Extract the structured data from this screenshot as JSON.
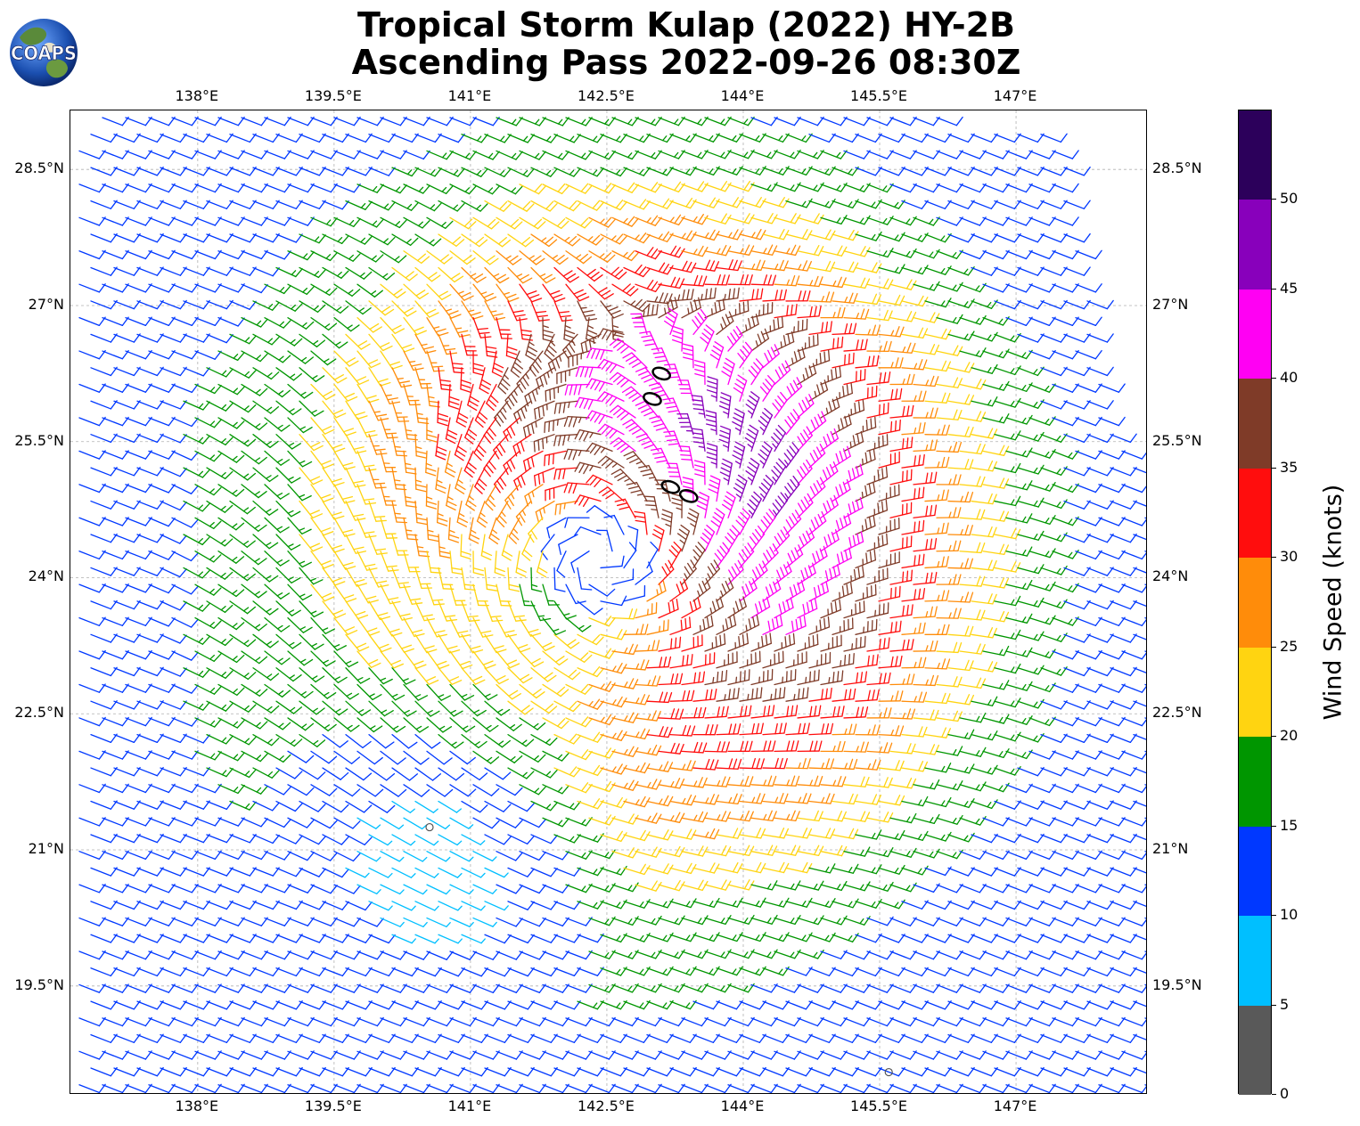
{
  "title_line1": "Tropical Storm Kulap (2022) HY-2B",
  "title_line2": "Ascending Pass 2022-09-26 08:30Z",
  "logo_text": "COAPS",
  "map": {
    "lon_range": [
      136.6,
      148.45
    ],
    "lat_range": [
      18.3,
      29.15
    ],
    "lon_ticks": [
      {
        "value": 138.0,
        "label": "138°E"
      },
      {
        "value": 139.5,
        "label": "139.5°E"
      },
      {
        "value": 141.0,
        "label": "141°E"
      },
      {
        "value": 142.5,
        "label": "142.5°E"
      },
      {
        "value": 144.0,
        "label": "144°E"
      },
      {
        "value": 145.5,
        "label": "145.5°E"
      },
      {
        "value": 147.0,
        "label": "147°E"
      }
    ],
    "lat_ticks": [
      {
        "value": 28.5,
        "label": "28.5°N"
      },
      {
        "value": 27.0,
        "label": "27°N"
      },
      {
        "value": 25.5,
        "label": "25.5°N"
      },
      {
        "value": 24.0,
        "label": "24°N"
      },
      {
        "value": 22.5,
        "label": "22.5°N"
      },
      {
        "value": 21.0,
        "label": "21°N"
      },
      {
        "value": 19.5,
        "label": "19.5°N"
      }
    ],
    "grid": "dashed",
    "storm_center": {
      "lon": 142.4,
      "lat": 24.2
    },
    "calm_center": {
      "lon": 140.6,
      "lat": 21.0
    },
    "islands": [
      {
        "lon": 143.0,
        "lat": 25.97
      },
      {
        "lon": 143.1,
        "lat": 26.25
      },
      {
        "lon": 143.2,
        "lat": 25.0
      },
      {
        "lon": 143.4,
        "lat": 24.9
      },
      {
        "lon": 140.55,
        "lat": 21.25
      },
      {
        "lon": 145.6,
        "lat": 18.55
      }
    ]
  },
  "colorbar": {
    "label": "Wind Speed (knots)",
    "ticks": [
      "0",
      "5",
      "10",
      "15",
      "20",
      "25",
      "30",
      "35",
      "40",
      "45",
      "50"
    ],
    "max": 55,
    "segments": [
      {
        "from": 0,
        "to": 5,
        "color": "#595959"
      },
      {
        "from": 5,
        "to": 10,
        "color": "#00bfff"
      },
      {
        "from": 10,
        "to": 15,
        "color": "#0038ff"
      },
      {
        "from": 15,
        "to": 20,
        "color": "#009600"
      },
      {
        "from": 20,
        "to": 25,
        "color": "#ffd411"
      },
      {
        "from": 25,
        "to": 30,
        "color": "#ff8c0a"
      },
      {
        "from": 30,
        "to": 35,
        "color": "#ff0d0d"
      },
      {
        "from": 35,
        "to": 40,
        "color": "#7f3b28"
      },
      {
        "from": 40,
        "to": 45,
        "color": "#ff00f3"
      },
      {
        "from": 45,
        "to": 50,
        "color": "#8800bb"
      },
      {
        "from": 50,
        "to": 55,
        "color": "#2c005b"
      }
    ]
  }
}
